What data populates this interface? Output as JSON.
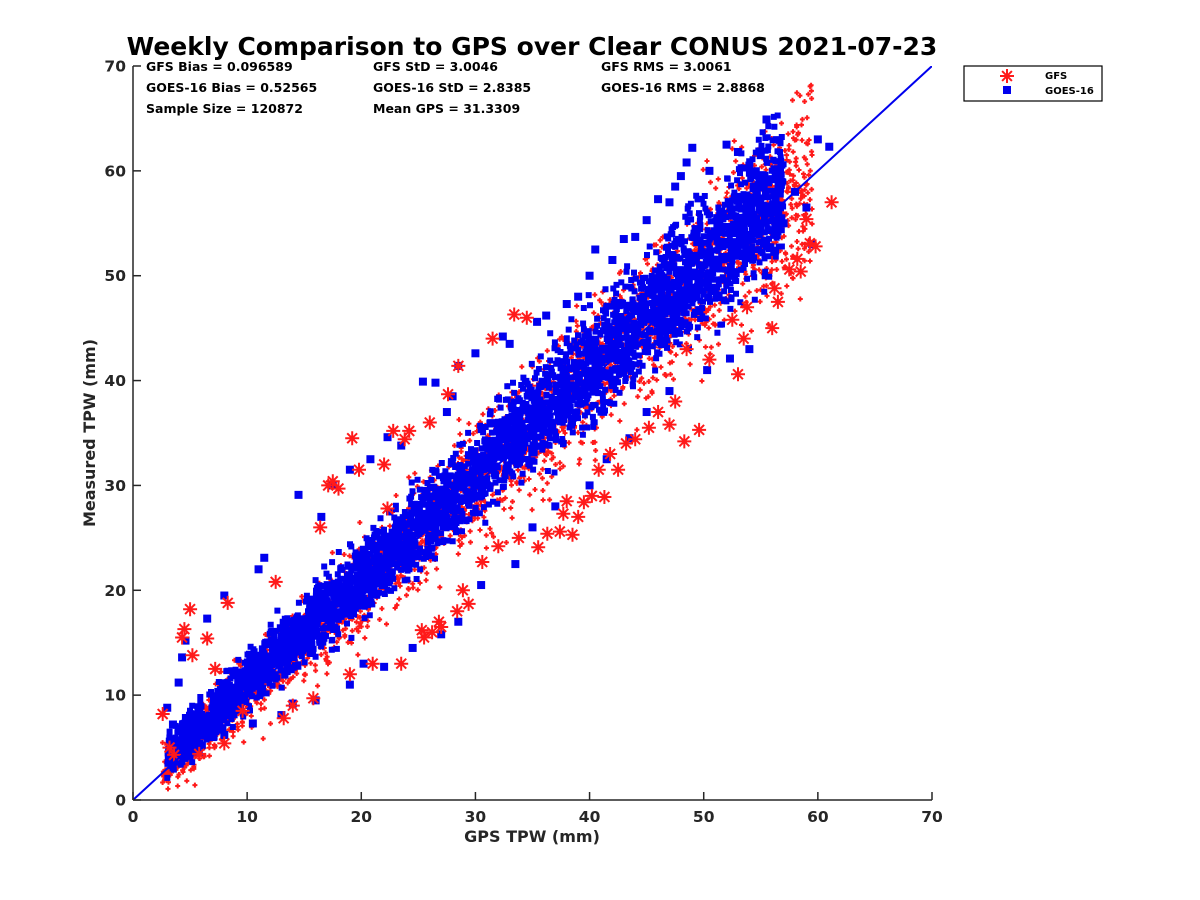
{
  "chart_data": {
    "type": "scatter",
    "title": "Weekly Comparison to GPS over Clear CONUS 2021-07-23",
    "xlabel": "GPS TPW (mm)",
    "ylabel": "Measured TPW (mm)",
    "xlim": [
      0,
      70
    ],
    "ylim": [
      0,
      70
    ],
    "xticks": [
      "0",
      "10",
      "20",
      "30",
      "40",
      "50",
      "60",
      "70"
    ],
    "yticks": [
      "0",
      "10",
      "20",
      "30",
      "40",
      "50",
      "60",
      "70"
    ],
    "grid": false,
    "legend_position": "outside-top-right",
    "stats": [
      {
        "text": "GFS Bias = 0.096589"
      },
      {
        "text": "GFS StD = 3.0046"
      },
      {
        "text": "GFS RMS = 3.0061"
      },
      {
        "text": "GOES-16 Bias = 0.52565"
      },
      {
        "text": "GOES-16 StD = 2.8385"
      },
      {
        "text": "GOES-16 RMS = 2.8868"
      },
      {
        "text": "Sample Size = 120872"
      },
      {
        "text": "Mean GPS = 31.3309"
      }
    ],
    "reference_line": {
      "name": "1:1",
      "x": [
        0,
        70
      ],
      "y": [
        0,
        70
      ],
      "color": "#0000ee"
    },
    "series": [
      {
        "name": "GFS",
        "marker": "asterisk",
        "color": "#ff1a1a",
        "points": [
          [
            2.6,
            8.2
          ],
          [
            3.2,
            5.0
          ],
          [
            3.6,
            4.3
          ],
          [
            4.3,
            15.5
          ],
          [
            4.5,
            16.3
          ],
          [
            5.0,
            18.2
          ],
          [
            5.2,
            13.8
          ],
          [
            5.8,
            4.4
          ],
          [
            6.5,
            15.4
          ],
          [
            7.2,
            12.5
          ],
          [
            8.0,
            5.4
          ],
          [
            8.3,
            18.8
          ],
          [
            9.6,
            8.5
          ],
          [
            12.5,
            20.8
          ],
          [
            13.2,
            7.8
          ],
          [
            14.0,
            9.0
          ],
          [
            15.8,
            9.7
          ],
          [
            16.4,
            26.0
          ],
          [
            17.1,
            30.0
          ],
          [
            17.5,
            30.4
          ],
          [
            18.0,
            29.7
          ],
          [
            19.0,
            12.0
          ],
          [
            19.2,
            34.5
          ],
          [
            19.8,
            31.5
          ],
          [
            21.0,
            13.0
          ],
          [
            22.0,
            32.0
          ],
          [
            22.3,
            27.8
          ],
          [
            22.8,
            35.2
          ],
          [
            23.5,
            13.0
          ],
          [
            23.8,
            34.4
          ],
          [
            24.2,
            35.2
          ],
          [
            25.3,
            16.2
          ],
          [
            25.5,
            15.5
          ],
          [
            26.0,
            36.0
          ],
          [
            26.2,
            16.0
          ],
          [
            26.8,
            17.0
          ],
          [
            27.0,
            16.5
          ],
          [
            27.6,
            38.7
          ],
          [
            28.4,
            18.0
          ],
          [
            28.5,
            41.4
          ],
          [
            28.9,
            20.0
          ],
          [
            29.4,
            18.7
          ],
          [
            30.6,
            22.7
          ],
          [
            31.5,
            44.0
          ],
          [
            32.0,
            24.2
          ],
          [
            33.4,
            46.3
          ],
          [
            33.8,
            25.0
          ],
          [
            34.5,
            46.0
          ],
          [
            35.5,
            24.1
          ],
          [
            36.3,
            25.4
          ],
          [
            37.4,
            25.6
          ],
          [
            37.7,
            27.3
          ],
          [
            38.0,
            28.5
          ],
          [
            38.5,
            25.3
          ],
          [
            39.0,
            27.0
          ],
          [
            39.5,
            28.4
          ],
          [
            40.2,
            29.0
          ],
          [
            40.8,
            31.5
          ],
          [
            41.3,
            28.9
          ],
          [
            41.8,
            33.0
          ],
          [
            42.5,
            31.5
          ],
          [
            43.2,
            34.0
          ],
          [
            44.0,
            34.4
          ],
          [
            45.2,
            35.5
          ],
          [
            46.0,
            37.0
          ],
          [
            47.0,
            35.8
          ],
          [
            47.5,
            38.0
          ],
          [
            48.3,
            34.2
          ],
          [
            48.5,
            43.0
          ],
          [
            49.6,
            35.3
          ],
          [
            50.5,
            42.0
          ],
          [
            52.5,
            45.8
          ],
          [
            53.0,
            40.6
          ],
          [
            53.5,
            44.0
          ],
          [
            53.8,
            47.0
          ],
          [
            56.0,
            45.0
          ],
          [
            56.2,
            48.8
          ],
          [
            56.5,
            47.5
          ],
          [
            57.5,
            50.6
          ],
          [
            58.2,
            51.6
          ],
          [
            58.5,
            50.4
          ],
          [
            59.0,
            55.4
          ],
          [
            59.3,
            53.1
          ],
          [
            59.8,
            52.8
          ],
          [
            61.2,
            57.0
          ]
        ]
      },
      {
        "name": "GOES-16",
        "marker": "square",
        "color": "#0000ee",
        "points": [
          [
            3.0,
            8.8
          ],
          [
            4.3,
            13.6
          ],
          [
            4.6,
            15.2
          ],
          [
            6.5,
            17.3
          ],
          [
            7.0,
            6.0
          ],
          [
            8.0,
            19.5
          ],
          [
            9.0,
            8.6
          ],
          [
            11.0,
            22.0
          ],
          [
            11.5,
            23.1
          ],
          [
            14.0,
            9.2
          ],
          [
            14.5,
            29.1
          ],
          [
            16.5,
            27.0
          ],
          [
            17.5,
            30.0
          ],
          [
            19.0,
            31.5
          ],
          [
            20.2,
            13.0
          ],
          [
            20.8,
            32.5
          ],
          [
            22.3,
            34.6
          ],
          [
            23.5,
            33.8
          ],
          [
            25.4,
            39.9
          ],
          [
            26.5,
            39.8
          ],
          [
            27.5,
            37.0
          ],
          [
            28.0,
            38.5
          ],
          [
            28.5,
            41.4
          ],
          [
            30.0,
            42.6
          ],
          [
            32.4,
            44.2
          ],
          [
            33.0,
            43.5
          ],
          [
            35.4,
            45.6
          ],
          [
            36.2,
            46.2
          ],
          [
            38.0,
            47.3
          ],
          [
            39.0,
            48.0
          ],
          [
            40.0,
            50.0
          ],
          [
            40.5,
            52.5
          ],
          [
            42.0,
            51.5
          ],
          [
            43.0,
            53.5
          ],
          [
            44.0,
            53.7
          ],
          [
            45.0,
            55.3
          ],
          [
            46.0,
            57.3
          ],
          [
            47.0,
            57.0
          ],
          [
            47.5,
            58.5
          ],
          [
            48.0,
            59.5
          ],
          [
            48.5,
            60.8
          ],
          [
            49.0,
            62.2
          ],
          [
            50.5,
            60.0
          ],
          [
            52.0,
            62.5
          ],
          [
            53.0,
            61.8
          ],
          [
            54.0,
            60.5
          ],
          [
            55.0,
            61.5
          ],
          [
            55.5,
            64.9
          ],
          [
            56.5,
            60.0
          ],
          [
            57.0,
            55.0
          ],
          [
            58.0,
            58.0
          ],
          [
            59.0,
            56.5
          ],
          [
            59.5,
            53.0
          ],
          [
            60.0,
            63.0
          ],
          [
            61.0,
            62.3
          ],
          [
            54.0,
            43.0
          ],
          [
            52.3,
            42.1
          ],
          [
            50.3,
            41.0
          ],
          [
            47.0,
            39.0
          ],
          [
            45.0,
            37.0
          ],
          [
            43.5,
            34.5
          ],
          [
            41.5,
            32.5
          ],
          [
            40.0,
            30.0
          ],
          [
            37.0,
            28.0
          ],
          [
            35.0,
            26.0
          ],
          [
            33.5,
            22.5
          ],
          [
            30.5,
            20.5
          ],
          [
            28.5,
            17.0
          ],
          [
            27.0,
            15.8
          ],
          [
            24.5,
            14.5
          ],
          [
            22.0,
            12.7
          ],
          [
            19.0,
            11.0
          ],
          [
            16.0,
            9.5
          ],
          [
            13.0,
            8.1
          ],
          [
            10.5,
            7.3
          ],
          [
            8.0,
            6.2
          ],
          [
            6.0,
            5.2
          ],
          [
            5.5,
            8.0
          ],
          [
            4.0,
            11.2
          ],
          [
            3.5,
            7.2
          ]
        ]
      }
    ]
  }
}
